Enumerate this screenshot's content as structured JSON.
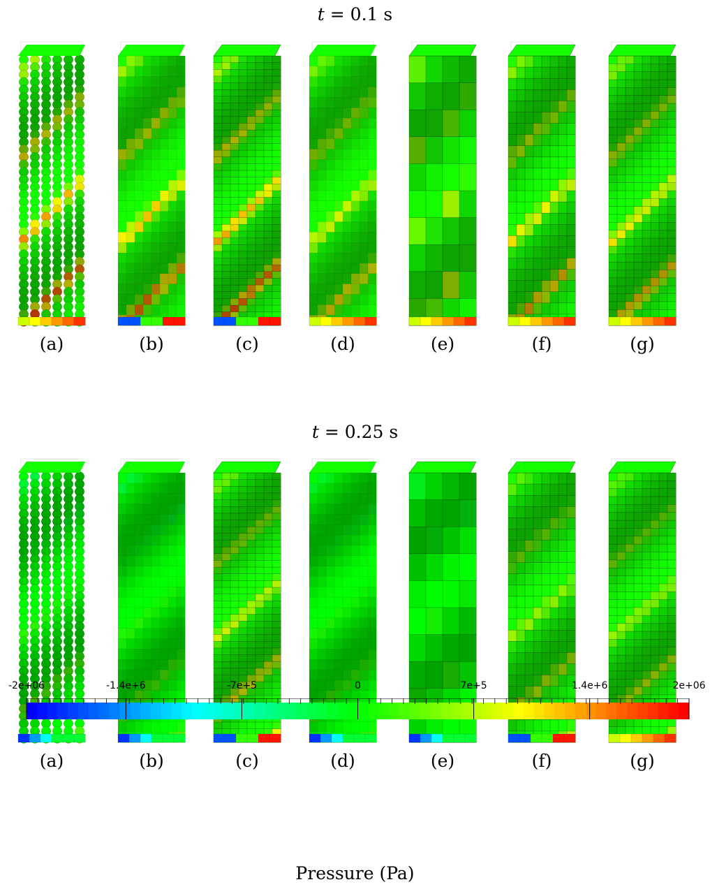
{
  "rows": [
    {
      "title_var": "t",
      "title_rest": " = 0.1 s",
      "panels": [
        {
          "label": "(a)",
          "mesh": "particles",
          "intensity": 0.95,
          "base_pressure": "positive"
        },
        {
          "label": "(b)",
          "mesh": "tri",
          "intensity": 0.85,
          "base_pressure": "mixed"
        },
        {
          "label": "(c)",
          "mesh": "tri-dense",
          "intensity": 0.9,
          "base_pressure": "mixed"
        },
        {
          "label": "(d)",
          "mesh": "tri",
          "intensity": 0.6,
          "base_pressure": "positive"
        },
        {
          "label": "(e)",
          "mesh": "hex-coarse",
          "intensity": 0.45,
          "base_pressure": "positive"
        },
        {
          "label": "(f)",
          "mesh": "hex",
          "intensity": 0.7,
          "base_pressure": "positive"
        },
        {
          "label": "(g)",
          "mesh": "hex-fine",
          "intensity": 0.7,
          "base_pressure": "positive"
        }
      ]
    },
    {
      "title_var": "t",
      "title_rest": " = 0.25 s",
      "panels": [
        {
          "label": "(a)",
          "mesh": "particles",
          "intensity": 0.55,
          "base_pressure": "negative"
        },
        {
          "label": "(b)",
          "mesh": "tri",
          "intensity": 0.5,
          "base_pressure": "negative"
        },
        {
          "label": "(c)",
          "mesh": "tri-dense",
          "intensity": 0.6,
          "base_pressure": "mixed"
        },
        {
          "label": "(d)",
          "mesh": "tri",
          "intensity": 0.35,
          "base_pressure": "negative"
        },
        {
          "label": "(e)",
          "mesh": "hex-coarse",
          "intensity": 0.3,
          "base_pressure": "negative"
        },
        {
          "label": "(f)",
          "mesh": "hex",
          "intensity": 0.45,
          "base_pressure": "mixed"
        },
        {
          "label": "(g)",
          "mesh": "hex-fine",
          "intensity": 0.45,
          "base_pressure": "positive"
        }
      ]
    }
  ],
  "colorbar": {
    "title": "Pressure (Pa)",
    "min": -2000000,
    "max": 2000000,
    "tick_labels": [
      {
        "text": "-2e+06",
        "value": -2000000
      },
      {
        "text": "-1.4e+6",
        "value": -1400000
      },
      {
        "text": "-7e+5",
        "value": -700000
      },
      {
        "text": "0",
        "value": 0
      },
      {
        "text": "7e+5",
        "value": 700000
      },
      {
        "text": "1.4e+6",
        "value": 1400000
      },
      {
        "text": "2e+06",
        "value": 2000000
      }
    ],
    "colors": [
      "#0000ff",
      "#00ffff",
      "#00ff00",
      "#ffff00",
      "#ff0000"
    ]
  }
}
